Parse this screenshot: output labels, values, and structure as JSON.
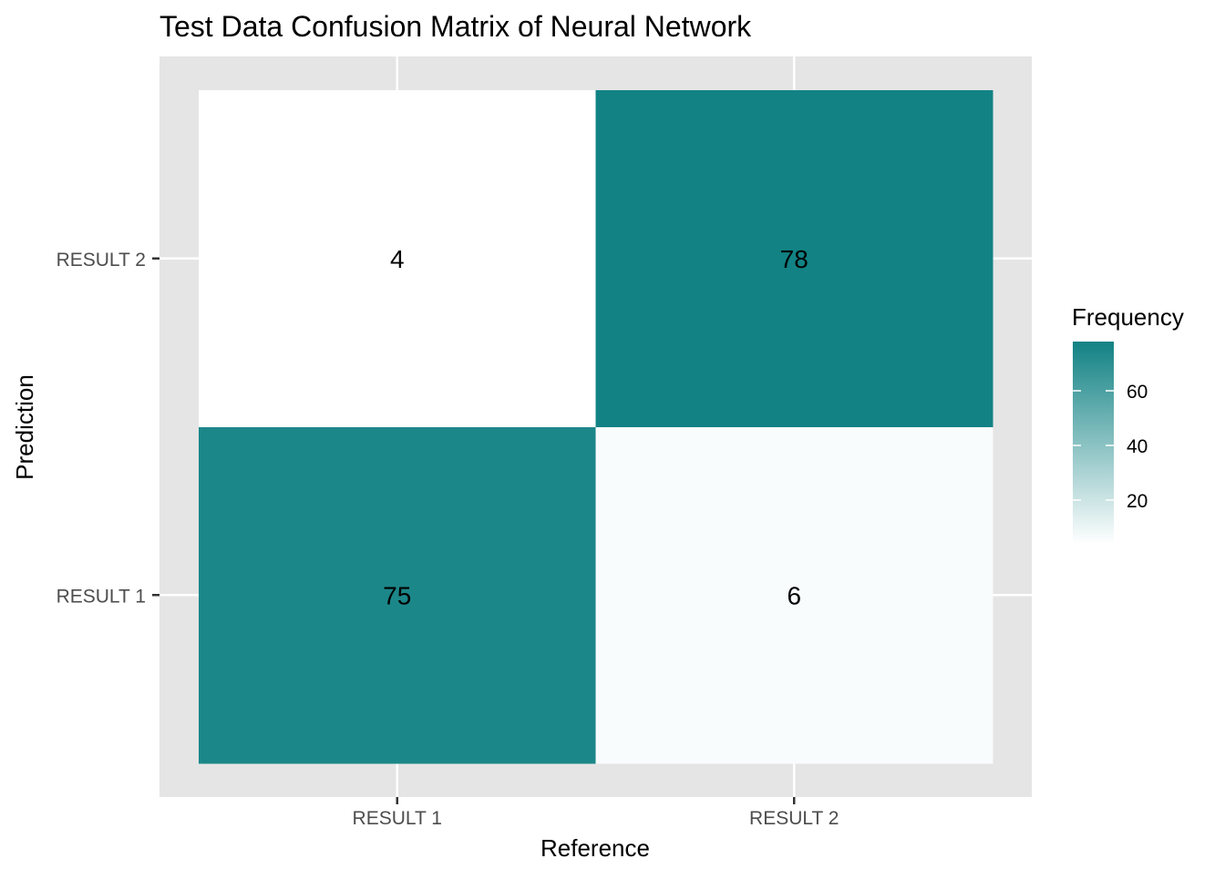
{
  "chart_data": {
    "type": "heatmap",
    "title": "Test Data Confusion Matrix of Neural Network",
    "xlabel": "Reference",
    "ylabel": "Prediction",
    "x_categories": [
      "RESULT 1",
      "RESULT 2"
    ],
    "y_categories": [
      "RESULT 1",
      "RESULT 2"
    ],
    "cells": [
      {
        "x": "RESULT 1",
        "y": "RESULT 1",
        "value": 75
      },
      {
        "x": "RESULT 2",
        "y": "RESULT 1",
        "value": 6
      },
      {
        "x": "RESULT 1",
        "y": "RESULT 2",
        "value": 4
      },
      {
        "x": "RESULT 2",
        "y": "RESULT 2",
        "value": 78
      }
    ],
    "legend": {
      "title": "Frequency",
      "ticks": [
        20,
        40,
        60
      ],
      "position": "right"
    },
    "color_low": "#ffffff",
    "color_high": "#128284",
    "panel_background": "#e5e5e5",
    "grid": true
  }
}
